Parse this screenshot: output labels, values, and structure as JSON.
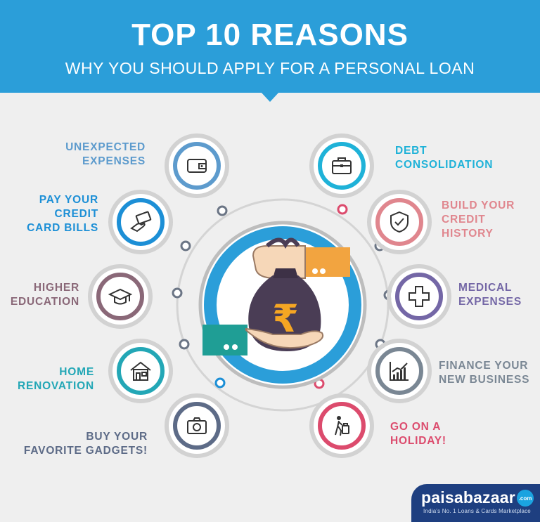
{
  "header": {
    "title": "TOP 10 REASONS",
    "subtitle": "WHY YOU SHOULD APPLY FOR A PERSONAL LOAN"
  },
  "center": {
    "currency_symbol": "₹",
    "icon": "money-bag-handover-icon"
  },
  "reasons": [
    {
      "id": "unexpected-expenses",
      "lines": [
        "UNEXPECTED",
        "EXPENSES"
      ],
      "icon": "wallet-icon",
      "color": "#5d9bcd"
    },
    {
      "id": "pay-credit-card-bills",
      "lines": [
        "PAY YOUR",
        "CREDIT",
        "CARD BILLS"
      ],
      "icon": "hand-card-icon",
      "color": "#1c8fd6"
    },
    {
      "id": "higher-education",
      "lines": [
        "HIGHER",
        "EDUCATION"
      ],
      "icon": "graduation-cap-icon",
      "color": "#8a6878"
    },
    {
      "id": "home-renovation",
      "lines": [
        "HOME",
        "RENOVATION"
      ],
      "icon": "house-icon",
      "color": "#23a7b6"
    },
    {
      "id": "buy-gadgets",
      "lines": [
        "BUY YOUR",
        "FAVORITE GADGETS!"
      ],
      "icon": "camera-icon",
      "color": "#5d6b87"
    },
    {
      "id": "debt-consolidation",
      "lines": [
        "DEBT",
        "CONSOLIDATION"
      ],
      "icon": "briefcase-icon",
      "color": "#1fb2d8"
    },
    {
      "id": "build-credit-history",
      "lines": [
        "BUILD YOUR",
        "CREDIT",
        "HISTORY"
      ],
      "icon": "shield-check-icon",
      "color": "#e0868e"
    },
    {
      "id": "medical-expenses",
      "lines": [
        "MEDICAL",
        "EXPENSES"
      ],
      "icon": "medical-cross-icon",
      "color": "#7467a6"
    },
    {
      "id": "finance-business",
      "lines": [
        "FINANCE YOUR",
        "NEW BUSINESS"
      ],
      "icon": "growth-chart-icon",
      "color": "#7a8794"
    },
    {
      "id": "go-on-holiday",
      "lines": [
        "GO ON A",
        "HOLIDAY!"
      ],
      "icon": "traveller-icon",
      "color": "#dc4b6d"
    }
  ],
  "brand": {
    "name": "paisabazaar",
    "badge": ".com",
    "tagline": "India's No. 1 Loans & Cards Marketplace",
    "color": "#1e3f80"
  }
}
